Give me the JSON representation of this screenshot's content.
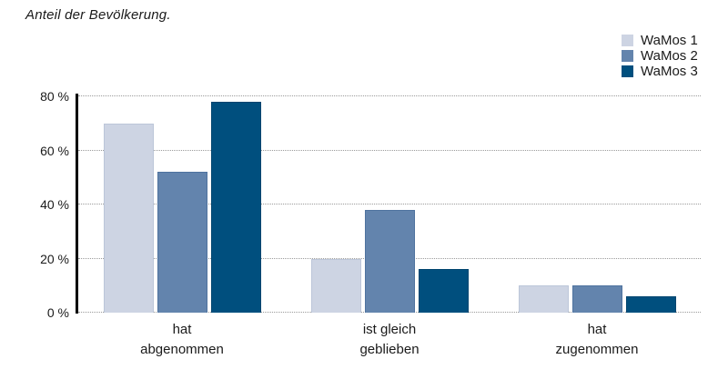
{
  "chart_data": {
    "type": "bar",
    "title": "Anteil der Bevölkerung.",
    "categories": [
      "hat\nabgenommen",
      "ist gleich\ngeblieben",
      "hat\nzugenommen"
    ],
    "series": [
      {
        "name": "WaMos 1",
        "color": "#cdd4e3",
        "border_color": "#bcc6d9",
        "values": [
          70,
          20,
          10
        ]
      },
      {
        "name": "WaMos 2",
        "color": "#6384ad",
        "border_color": "#4f739f",
        "values": [
          52,
          38,
          10
        ]
      },
      {
        "name": "WaMos 3",
        "color": "#004f7e",
        "border_color": "#00456f",
        "values": [
          78,
          16,
          6
        ]
      }
    ],
    "xlabel": "",
    "ylabel": "",
    "ylim": [
      0,
      80
    ],
    "yticks": [
      0,
      20,
      40,
      60,
      80
    ],
    "ytick_suffix": " %",
    "grid": "horizontal-dotted",
    "legend_position": "top-right",
    "axis_color": "#000000",
    "gridline_color": "#9b9b9b",
    "text_color": "#1a1a1a",
    "background_color": "#ffffff"
  }
}
